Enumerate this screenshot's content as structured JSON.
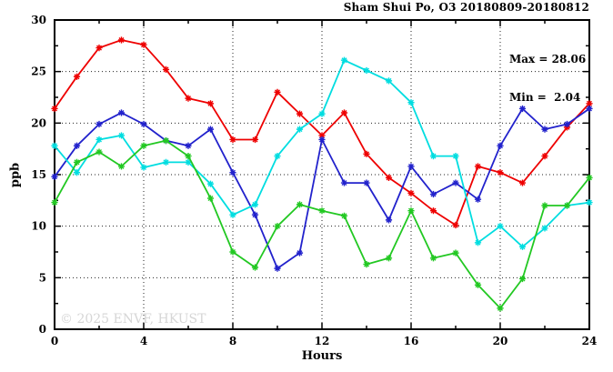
{
  "title": "Sham Shui Po, O3 20180809-20180812",
  "watermark": "© 2025 ENVF, HKUST",
  "annotation": {
    "max_label": "Max = 28.06",
    "min_label": "Min =  2.04"
  },
  "chart_data": {
    "type": "line",
    "title": "Sham Shui Po, O3 20180809-20180812",
    "xlabel": "Hours",
    "ylabel": "ppb",
    "xlim": [
      0,
      24
    ],
    "ylim": [
      0,
      30
    ],
    "x_major_ticks": [
      0,
      4,
      8,
      12,
      16,
      20,
      24
    ],
    "x_minor_ticks": [
      2,
      6,
      10,
      14,
      18,
      22
    ],
    "y_major_ticks": [
      0,
      5,
      10,
      15,
      20,
      25,
      30
    ],
    "y_minor_ticks": [
      2.5,
      7.5,
      12.5,
      17.5,
      22.5,
      27.5
    ],
    "grid": "dotted lines at major ticks, mirrored inward ticks on all four sides",
    "legend_position": "none",
    "marker": "asterisk",
    "stat_max": 28.06,
    "stat_min": 2.04,
    "x": [
      0,
      1,
      2,
      3,
      4,
      5,
      6,
      7,
      8,
      9,
      10,
      11,
      12,
      13,
      14,
      15,
      16,
      17,
      18,
      19,
      20,
      21,
      22,
      23,
      24
    ],
    "series": [
      {
        "name": "series-red",
        "color": "#ee0000",
        "values": [
          21.4,
          24.5,
          27.3,
          28.06,
          27.6,
          25.2,
          22.4,
          21.9,
          18.4,
          18.4,
          23.0,
          20.9,
          18.8,
          21.0,
          17.0,
          14.7,
          13.2,
          11.5,
          10.1,
          15.8,
          15.2,
          14.2,
          16.8,
          19.6,
          21.9
        ]
      },
      {
        "name": "series-blue",
        "color": "#2222cc",
        "values": [
          14.8,
          17.8,
          19.9,
          21.0,
          19.9,
          18.3,
          17.8,
          19.4,
          15.2,
          11.1,
          5.9,
          7.4,
          18.4,
          14.2,
          14.2,
          10.6,
          15.8,
          13.1,
          14.2,
          12.6,
          17.8,
          21.4,
          19.4,
          19.9,
          21.4
        ]
      },
      {
        "name": "series-cyan",
        "color": "#00dde0",
        "values": [
          17.8,
          15.2,
          18.4,
          18.8,
          15.7,
          16.2,
          16.2,
          14.1,
          11.1,
          12.1,
          16.8,
          19.4,
          20.9,
          26.1,
          25.1,
          24.1,
          22.0,
          16.8,
          16.8,
          8.4,
          10.0,
          8.0,
          9.8,
          12.0,
          12.3
        ]
      },
      {
        "name": "series-green",
        "color": "#22c822",
        "values": [
          12.3,
          16.2,
          17.2,
          15.8,
          17.8,
          18.3,
          16.8,
          12.7,
          7.5,
          6.0,
          10.0,
          12.1,
          11.5,
          11.0,
          6.3,
          6.9,
          11.5,
          6.9,
          7.4,
          4.3,
          2.04,
          4.9,
          12.0,
          12.0,
          14.7
        ]
      }
    ]
  }
}
